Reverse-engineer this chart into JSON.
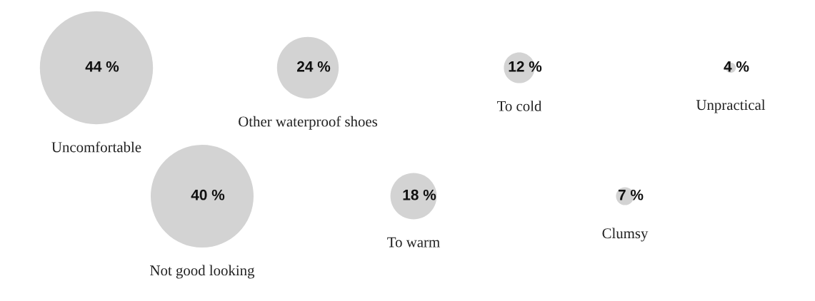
{
  "chart_data": {
    "type": "other",
    "categories": [
      "Uncomfortable",
      "Not good looking",
      "Other waterproof shoes",
      "To warm",
      "To cold",
      "Clumsy",
      "Unpractical"
    ],
    "values": [
      44,
      40,
      24,
      18,
      12,
      7,
      4
    ],
    "value_labels": [
      "44 %",
      "40 %",
      "24 %",
      "18 %",
      "12 %",
      "7 %",
      "4 %"
    ],
    "color": "#d3d3d3"
  }
}
